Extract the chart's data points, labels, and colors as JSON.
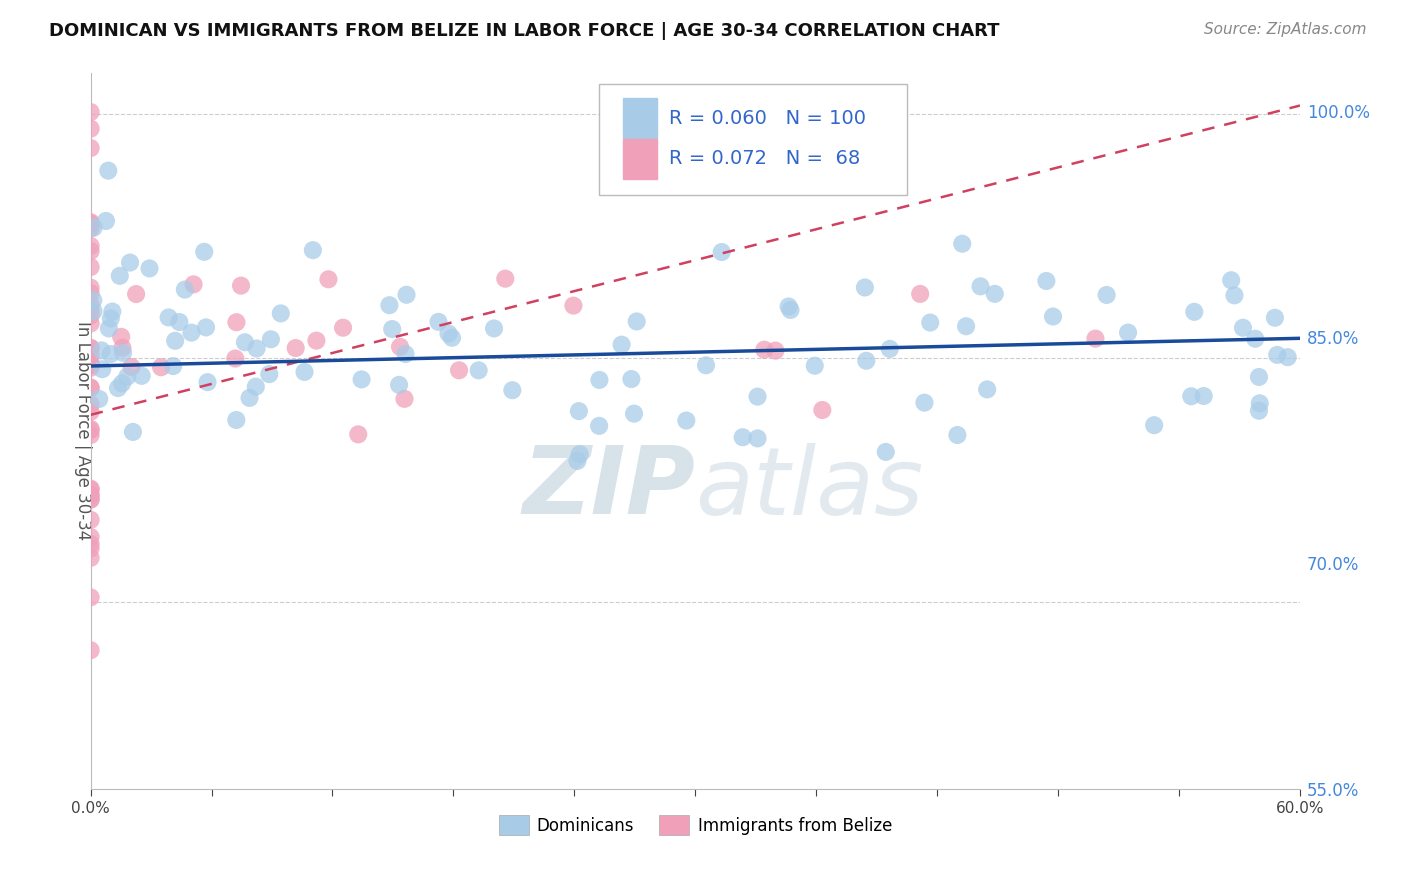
{
  "title": "DOMINICAN VS IMMIGRANTS FROM BELIZE IN LABOR FORCE | AGE 30-34 CORRELATION CHART",
  "source": "Source: ZipAtlas.com",
  "ylabel": "In Labor Force | Age 30-34",
  "legend_labels": [
    "Dominicans",
    "Immigrants from Belize"
  ],
  "r_dominican": 0.06,
  "n_dominican": 100,
  "r_belize": 0.072,
  "n_belize": 68,
  "x_min": 0.0,
  "x_max": 0.6,
  "y_min": 0.585,
  "y_max": 1.025,
  "y_ticks": [
    1.0,
    0.85,
    0.7,
    0.55
  ],
  "y_tick_labels": [
    "100.0%",
    "85.0%",
    "70.0%",
    "55.0%"
  ],
  "color_dominican": "#a8cce8",
  "color_belize": "#f0a0b8",
  "line_color_dominican": "#1a4a9a",
  "line_color_belize": "#d04060",
  "background_color": "#ffffff",
  "watermark_zip": "ZIP",
  "watermark_atlas": "atlas",
  "title_fontsize": 13,
  "source_fontsize": 11
}
